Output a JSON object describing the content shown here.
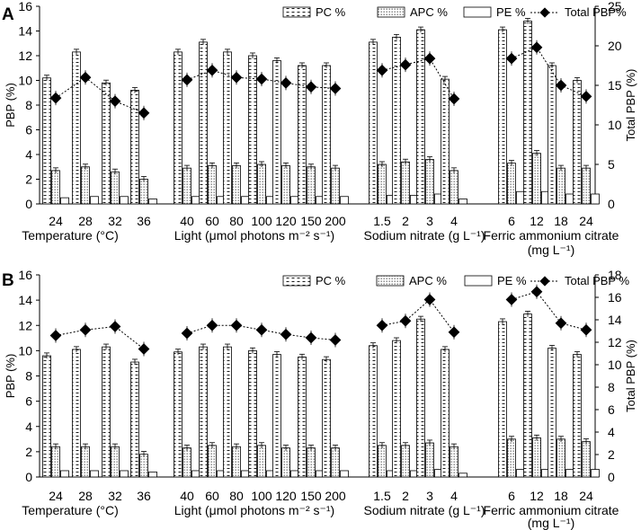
{
  "chart_data": [
    {
      "panel": "A",
      "type": "bar",
      "ylabel": "PBP (%)",
      "y2label": "Total PBP (%)",
      "ylim": [
        0,
        16
      ],
      "y2lim": [
        0,
        25
      ],
      "yticks": [
        "0",
        "2",
        "4",
        "6",
        "8",
        "10",
        "12",
        "14",
        "16"
      ],
      "y2ticks": [
        "0",
        "5",
        "10",
        "15",
        "20",
        "25"
      ],
      "legend": [
        "PC %",
        "APC %",
        "PE %",
        "Total PBP%"
      ],
      "groups": [
        {
          "label": "Temperature (°C)",
          "label2": "",
          "categories": [
            "24",
            "28",
            "32",
            "36"
          ],
          "series": {
            "PC": [
              10.2,
              12.3,
              9.8,
              9.2
            ],
            "APC": [
              2.7,
              3.0,
              2.6,
              2.0
            ],
            "PE": [
              0.5,
              0.6,
              0.6,
              0.4
            ],
            "Total": [
              13.4,
              16.0,
              13.0,
              11.5
            ]
          }
        },
        {
          "label": "Light (μmol photons m⁻² s⁻¹)",
          "label2": "",
          "categories": [
            "40",
            "60",
            "80",
            "100",
            "120",
            "150",
            "200"
          ],
          "series": {
            "PC": [
              12.3,
              13.1,
              12.3,
              12.0,
              11.6,
              11.2,
              11.2
            ],
            "APC": [
              2.9,
              3.1,
              3.1,
              3.2,
              3.1,
              3.0,
              2.9
            ],
            "PE": [
              0.6,
              0.6,
              0.6,
              0.6,
              0.6,
              0.6,
              0.6
            ],
            "Total": [
              15.7,
              16.9,
              16.0,
              15.8,
              15.3,
              14.8,
              14.6
            ]
          }
        },
        {
          "label": "Sodium nitrate (g L⁻¹)",
          "label2": "",
          "categories": [
            "1.5",
            "2",
            "3",
            "4"
          ],
          "series": {
            "PC": [
              13.1,
              13.5,
              14.1,
              10.1
            ],
            "APC": [
              3.2,
              3.4,
              3.6,
              2.7
            ],
            "PE": [
              0.7,
              0.7,
              0.8,
              0.4
            ],
            "Total": [
              16.9,
              17.6,
              18.4,
              13.3
            ]
          }
        },
        {
          "label": "Ferric ammonium citrate",
          "label2": "(mg L⁻¹)",
          "categories": [
            "6",
            "12",
            "18",
            "24"
          ],
          "series": {
            "PC": [
              14.1,
              14.8,
              11.2,
              10.0
            ],
            "APC": [
              3.3,
              4.1,
              2.9,
              2.9
            ],
            "PE": [
              1.0,
              1.0,
              0.8,
              0.8
            ],
            "Total": [
              18.4,
              19.8,
              15.0,
              13.6
            ]
          }
        }
      ]
    },
    {
      "panel": "B",
      "type": "bar",
      "ylabel": "PBP (%)",
      "y2label": "Total PBP (%)",
      "ylim": [
        0,
        16
      ],
      "y2lim": [
        0,
        18
      ],
      "yticks": [
        "0",
        "2",
        "4",
        "6",
        "8",
        "10",
        "12",
        "14",
        "16"
      ],
      "y2ticks": [
        "0",
        "2",
        "4",
        "6",
        "8",
        "10",
        "12",
        "14",
        "16",
        "18"
      ],
      "legend": [
        "PC %",
        "APC %",
        "PE %",
        "Total PBP %"
      ],
      "groups": [
        {
          "label": "Temperature (°C)",
          "label2": "",
          "categories": [
            "24",
            "28",
            "32",
            "36"
          ],
          "series": {
            "PC": [
              9.6,
              10.1,
              10.3,
              9.1
            ],
            "APC": [
              2.4,
              2.4,
              2.4,
              1.8
            ],
            "PE": [
              0.5,
              0.5,
              0.5,
              0.4
            ],
            "Total": [
              12.6,
              13.1,
              13.4,
              11.4
            ]
          }
        },
        {
          "label": "Light (μmol photons m⁻² s⁻¹)",
          "label2": "",
          "categories": [
            "40",
            "60",
            "80",
            "100",
            "120",
            "150",
            "200"
          ],
          "series": {
            "PC": [
              9.9,
              10.3,
              10.3,
              10.0,
              9.7,
              9.5,
              9.3
            ],
            "APC": [
              2.3,
              2.5,
              2.4,
              2.5,
              2.3,
              2.3,
              2.3
            ],
            "PE": [
              0.5,
              0.5,
              0.5,
              0.5,
              0.5,
              0.5,
              0.5
            ],
            "Total": [
              12.8,
              13.5,
              13.5,
              13.1,
              12.7,
              12.4,
              12.2
            ]
          }
        },
        {
          "label": "Sodium nitrate (g L⁻¹)",
          "label2": "",
          "categories": [
            "1.5",
            "2",
            "3",
            "4"
          ],
          "series": {
            "PC": [
              10.4,
              10.8,
              12.5,
              10.1
            ],
            "APC": [
              2.5,
              2.5,
              2.7,
              2.4
            ],
            "PE": [
              0.5,
              0.5,
              0.6,
              0.3
            ],
            "Total": [
              13.5,
              13.9,
              15.8,
              12.9
            ]
          }
        },
        {
          "label": "Ferric ammonium citrate",
          "label2": "(mg L⁻¹)",
          "categories": [
            "6",
            "12",
            "18",
            "24"
          ],
          "series": {
            "PC": [
              12.3,
              12.9,
              10.2,
              9.7
            ],
            "APC": [
              3.0,
              3.1,
              3.0,
              2.8
            ],
            "PE": [
              0.6,
              0.6,
              0.6,
              0.6
            ],
            "Total": [
              15.8,
              16.5,
              13.7,
              13.1
            ]
          }
        }
      ]
    }
  ]
}
